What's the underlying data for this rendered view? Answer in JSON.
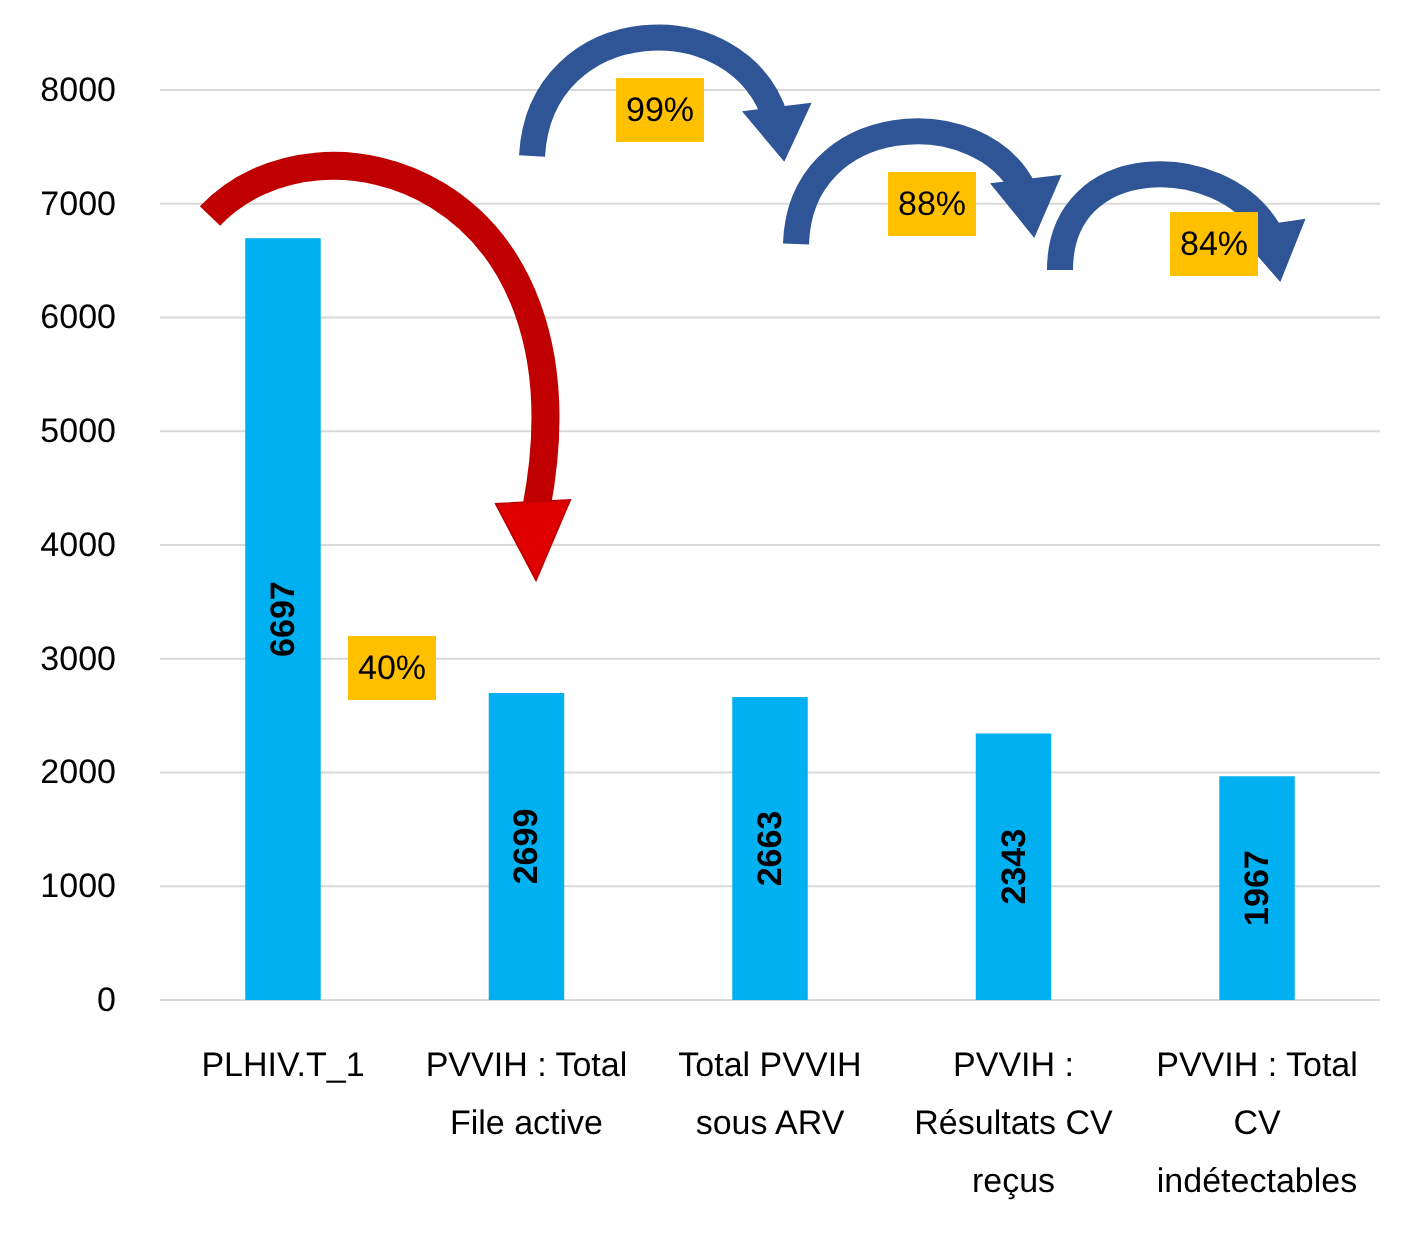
{
  "chart_data": {
    "type": "bar",
    "categories": [
      "PLHIV.T_1",
      "PVVIH : Total File active",
      "Total PVVIH sous ARV",
      "PVVIH : Résultats CV reçus",
      "PVVIH : Total CV indétectables"
    ],
    "values": [
      6697,
      2699,
      2663,
      2343,
      1967
    ],
    "color": "#00b0f0",
    "ylim": [
      0,
      8000
    ],
    "yticks": [
      0,
      1000,
      2000,
      3000,
      4000,
      5000,
      6000,
      7000,
      8000
    ],
    "grid": "y",
    "data_labels": true,
    "annotations": [
      "40%",
      "99%",
      "88%",
      "84%"
    ]
  }
}
